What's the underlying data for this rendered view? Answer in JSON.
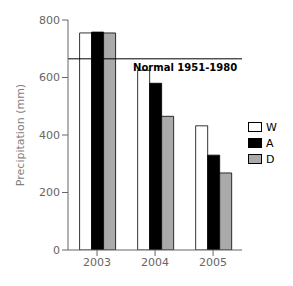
{
  "chart_data": {
    "type": "bar",
    "categories": [
      "2003",
      "2004",
      "2005"
    ],
    "series": [
      {
        "name": "W",
        "color": "white",
        "values": [
          755,
          625,
          432
        ]
      },
      {
        "name": "A",
        "color": "black",
        "values": [
          758,
          580,
          330
        ]
      },
      {
        "name": "D",
        "color": "#aaaaaa",
        "values": [
          755,
          465,
          268
        ]
      }
    ],
    "ylabel": "Precipitation (mm)",
    "ylim": [
      0,
      800
    ],
    "yticks": [
      0,
      200,
      400,
      600,
      800
    ],
    "annotations": [
      {
        "label": "Normal 1951-1980",
        "y": 665
      }
    ],
    "legend": "right",
    "grid": false
  }
}
